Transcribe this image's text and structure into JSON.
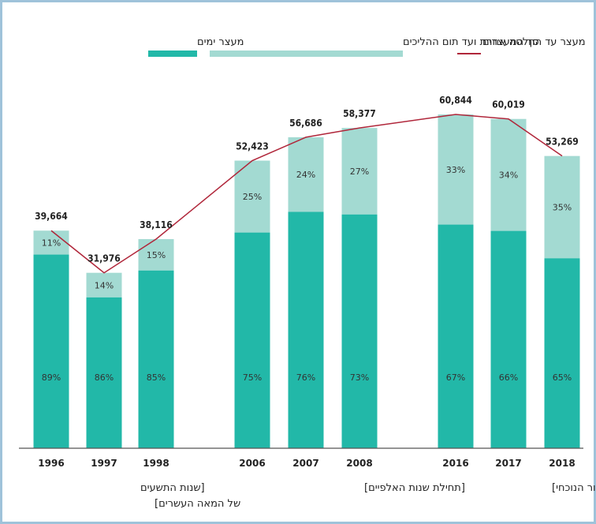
{
  "legend": {
    "total": "סך המעצרים",
    "until_end": "מעצר עד החלטה אחרת ועד תום ההליכים",
    "days": "מעצר ימים"
  },
  "colors": {
    "days": "#22b8a8",
    "until_end": "#a3dad2",
    "total_line": "#b0263a",
    "frame": "#9fc3da",
    "baseline": "#555555"
  },
  "groups": [
    {
      "label_line1": "[שנות התשעים",
      "label_line2": "של המאה העשרים]"
    },
    {
      "label_line1": "[תחילת שנות האלפיים]"
    },
    {
      "label_line1": "[העשור הנוכחי]"
    }
  ],
  "chart_data": {
    "type": "bar",
    "stacked": true,
    "categories": [
      "1996",
      "1997",
      "1998",
      "2006",
      "2007",
      "2008",
      "2016",
      "2017",
      "2018"
    ],
    "totals": [
      39664,
      31976,
      38116,
      52423,
      56686,
      58377,
      60844,
      60019,
      53269
    ],
    "totals_labels": [
      "39,664",
      "31,976",
      "38,116",
      "52,423",
      "56,686",
      "58,377",
      "60,844",
      "60,019",
      "53,269"
    ],
    "series": [
      {
        "name": "מעצר ימים",
        "percent": [
          89,
          86,
          85,
          75,
          76,
          73,
          67,
          66,
          65
        ],
        "percent_labels": [
          "89%",
          "86%",
          "85%",
          "75%",
          "76%",
          "73%",
          "67%",
          "66%",
          "65%"
        ]
      },
      {
        "name": "מעצר עד החלטה אחרת ועד תום ההליכים",
        "percent": [
          11,
          14,
          15,
          25,
          24,
          27,
          33,
          34,
          35
        ],
        "percent_labels": [
          "11%",
          "14%",
          "15%",
          "25%",
          "24%",
          "27%",
          "33%",
          "34%",
          "35%"
        ]
      }
    ],
    "line": {
      "name": "סך המעצרים",
      "values": [
        39664,
        31976,
        38116,
        52423,
        56686,
        58377,
        60844,
        60019,
        53269
      ]
    },
    "ylim": [
      0,
      62000
    ],
    "grid": false,
    "legend_position": "top"
  }
}
